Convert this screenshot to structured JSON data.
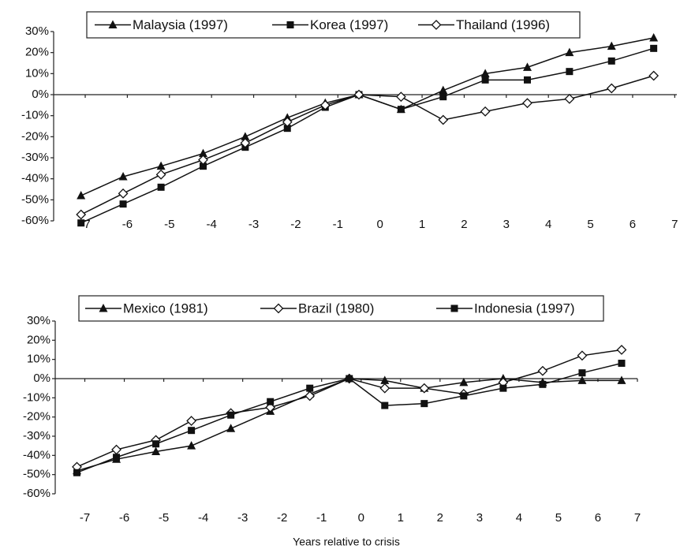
{
  "chart_data": [
    {
      "type": "line",
      "xlim": [
        -7.75,
        7.05
      ],
      "xticks": [
        -7,
        -6,
        -5,
        -4,
        -3,
        -2,
        -1,
        0,
        1,
        2,
        3,
        4,
        5,
        6,
        7
      ],
      "ylim": [
        -60,
        30
      ],
      "yticks": [
        {
          "value": 30,
          "label": "30%"
        },
        {
          "value": 20,
          "label": "20%"
        },
        {
          "value": 10,
          "label": "10%"
        },
        {
          "value": 0,
          "label": "0%"
        },
        {
          "value": -10,
          "label": "-10%"
        },
        {
          "value": -20,
          "label": "-20%"
        },
        {
          "value": -30,
          "label": "-30%"
        },
        {
          "value": -40,
          "label": "-40%"
        },
        {
          "value": -50,
          "label": "-50%"
        },
        {
          "value": -60,
          "label": "-60%"
        }
      ],
      "x": [
        -7.1,
        -6.1,
        -5.2,
        -4.2,
        -3.2,
        -2.2,
        -1.3,
        -0.5,
        0.5,
        1.5,
        2.5,
        3.5,
        4.5,
        5.5,
        6.5
      ],
      "series": [
        {
          "name": "Malaysia (1997)",
          "color": "#111111",
          "marker": "triangle",
          "values": [
            -48,
            -39,
            -34,
            -28,
            -20,
            -11,
            -4,
            0,
            -7,
            2,
            10,
            13,
            20,
            23,
            27
          ]
        },
        {
          "name": "Korea (1997)",
          "color": "#111111",
          "marker": "square",
          "values": [
            -61,
            -52,
            -44,
            -34,
            -25,
            -16,
            -6,
            0,
            -7,
            -1,
            7,
            7,
            11,
            16,
            22
          ]
        },
        {
          "name": "Thailand (1996)",
          "color": "#111111",
          "marker": "diamond",
          "values": [
            -57,
            -47,
            -38,
            -31,
            -23,
            -13,
            -5,
            0,
            -1,
            -12,
            -8,
            -4,
            -2,
            3,
            9
          ]
        }
      ]
    },
    {
      "type": "line",
      "xlabel": "Years relative to crisis",
      "xlim": [
        -7.75,
        7.0
      ],
      "xticks": [
        -7,
        -6,
        -5,
        -4,
        -3,
        -2,
        -1,
        0,
        1,
        2,
        3,
        4,
        5,
        6,
        7
      ],
      "ylim": [
        -60,
        30
      ],
      "yticks": [
        {
          "value": 30,
          "label": "30%"
        },
        {
          "value": 20,
          "label": "20%"
        },
        {
          "value": 10,
          "label": "10%"
        },
        {
          "value": 0,
          "label": "0%"
        },
        {
          "value": -10,
          "label": "-10%"
        },
        {
          "value": -20,
          "label": "-20%"
        },
        {
          "value": -30,
          "label": "-30%"
        },
        {
          "value": -40,
          "label": "-40%"
        },
        {
          "value": -50,
          "label": "-50%"
        },
        {
          "value": -60,
          "label": "-60%"
        }
      ],
      "x": [
        -7.2,
        -6.2,
        -5.2,
        -4.3,
        -3.3,
        -2.3,
        -1.3,
        -0.3,
        0.6,
        1.6,
        2.6,
        3.6,
        4.6,
        5.6,
        6.6
      ],
      "series": [
        {
          "name": "Mexico (1981)",
          "color": "#111111",
          "marker": "triangle",
          "values": [
            -48,
            -42,
            -38,
            -35,
            -26,
            -17,
            -8,
            0,
            -1,
            -5,
            -2,
            0,
            -2,
            -1,
            -1
          ]
        },
        {
          "name": "Brazil (1980)",
          "color": "#111111",
          "marker": "diamond",
          "values": [
            -46,
            -37,
            -32,
            -22,
            -18,
            -15,
            -9,
            0,
            -5,
            -5,
            -8,
            -2,
            4,
            12,
            15
          ]
        },
        {
          "name": "Indonesia (1997)",
          "color": "#111111",
          "marker": "square",
          "values": [
            -49,
            -41,
            -34,
            -27,
            -19,
            -12,
            -5,
            0,
            -14,
            -13,
            -9,
            -5,
            -3,
            3,
            8
          ]
        }
      ]
    }
  ]
}
